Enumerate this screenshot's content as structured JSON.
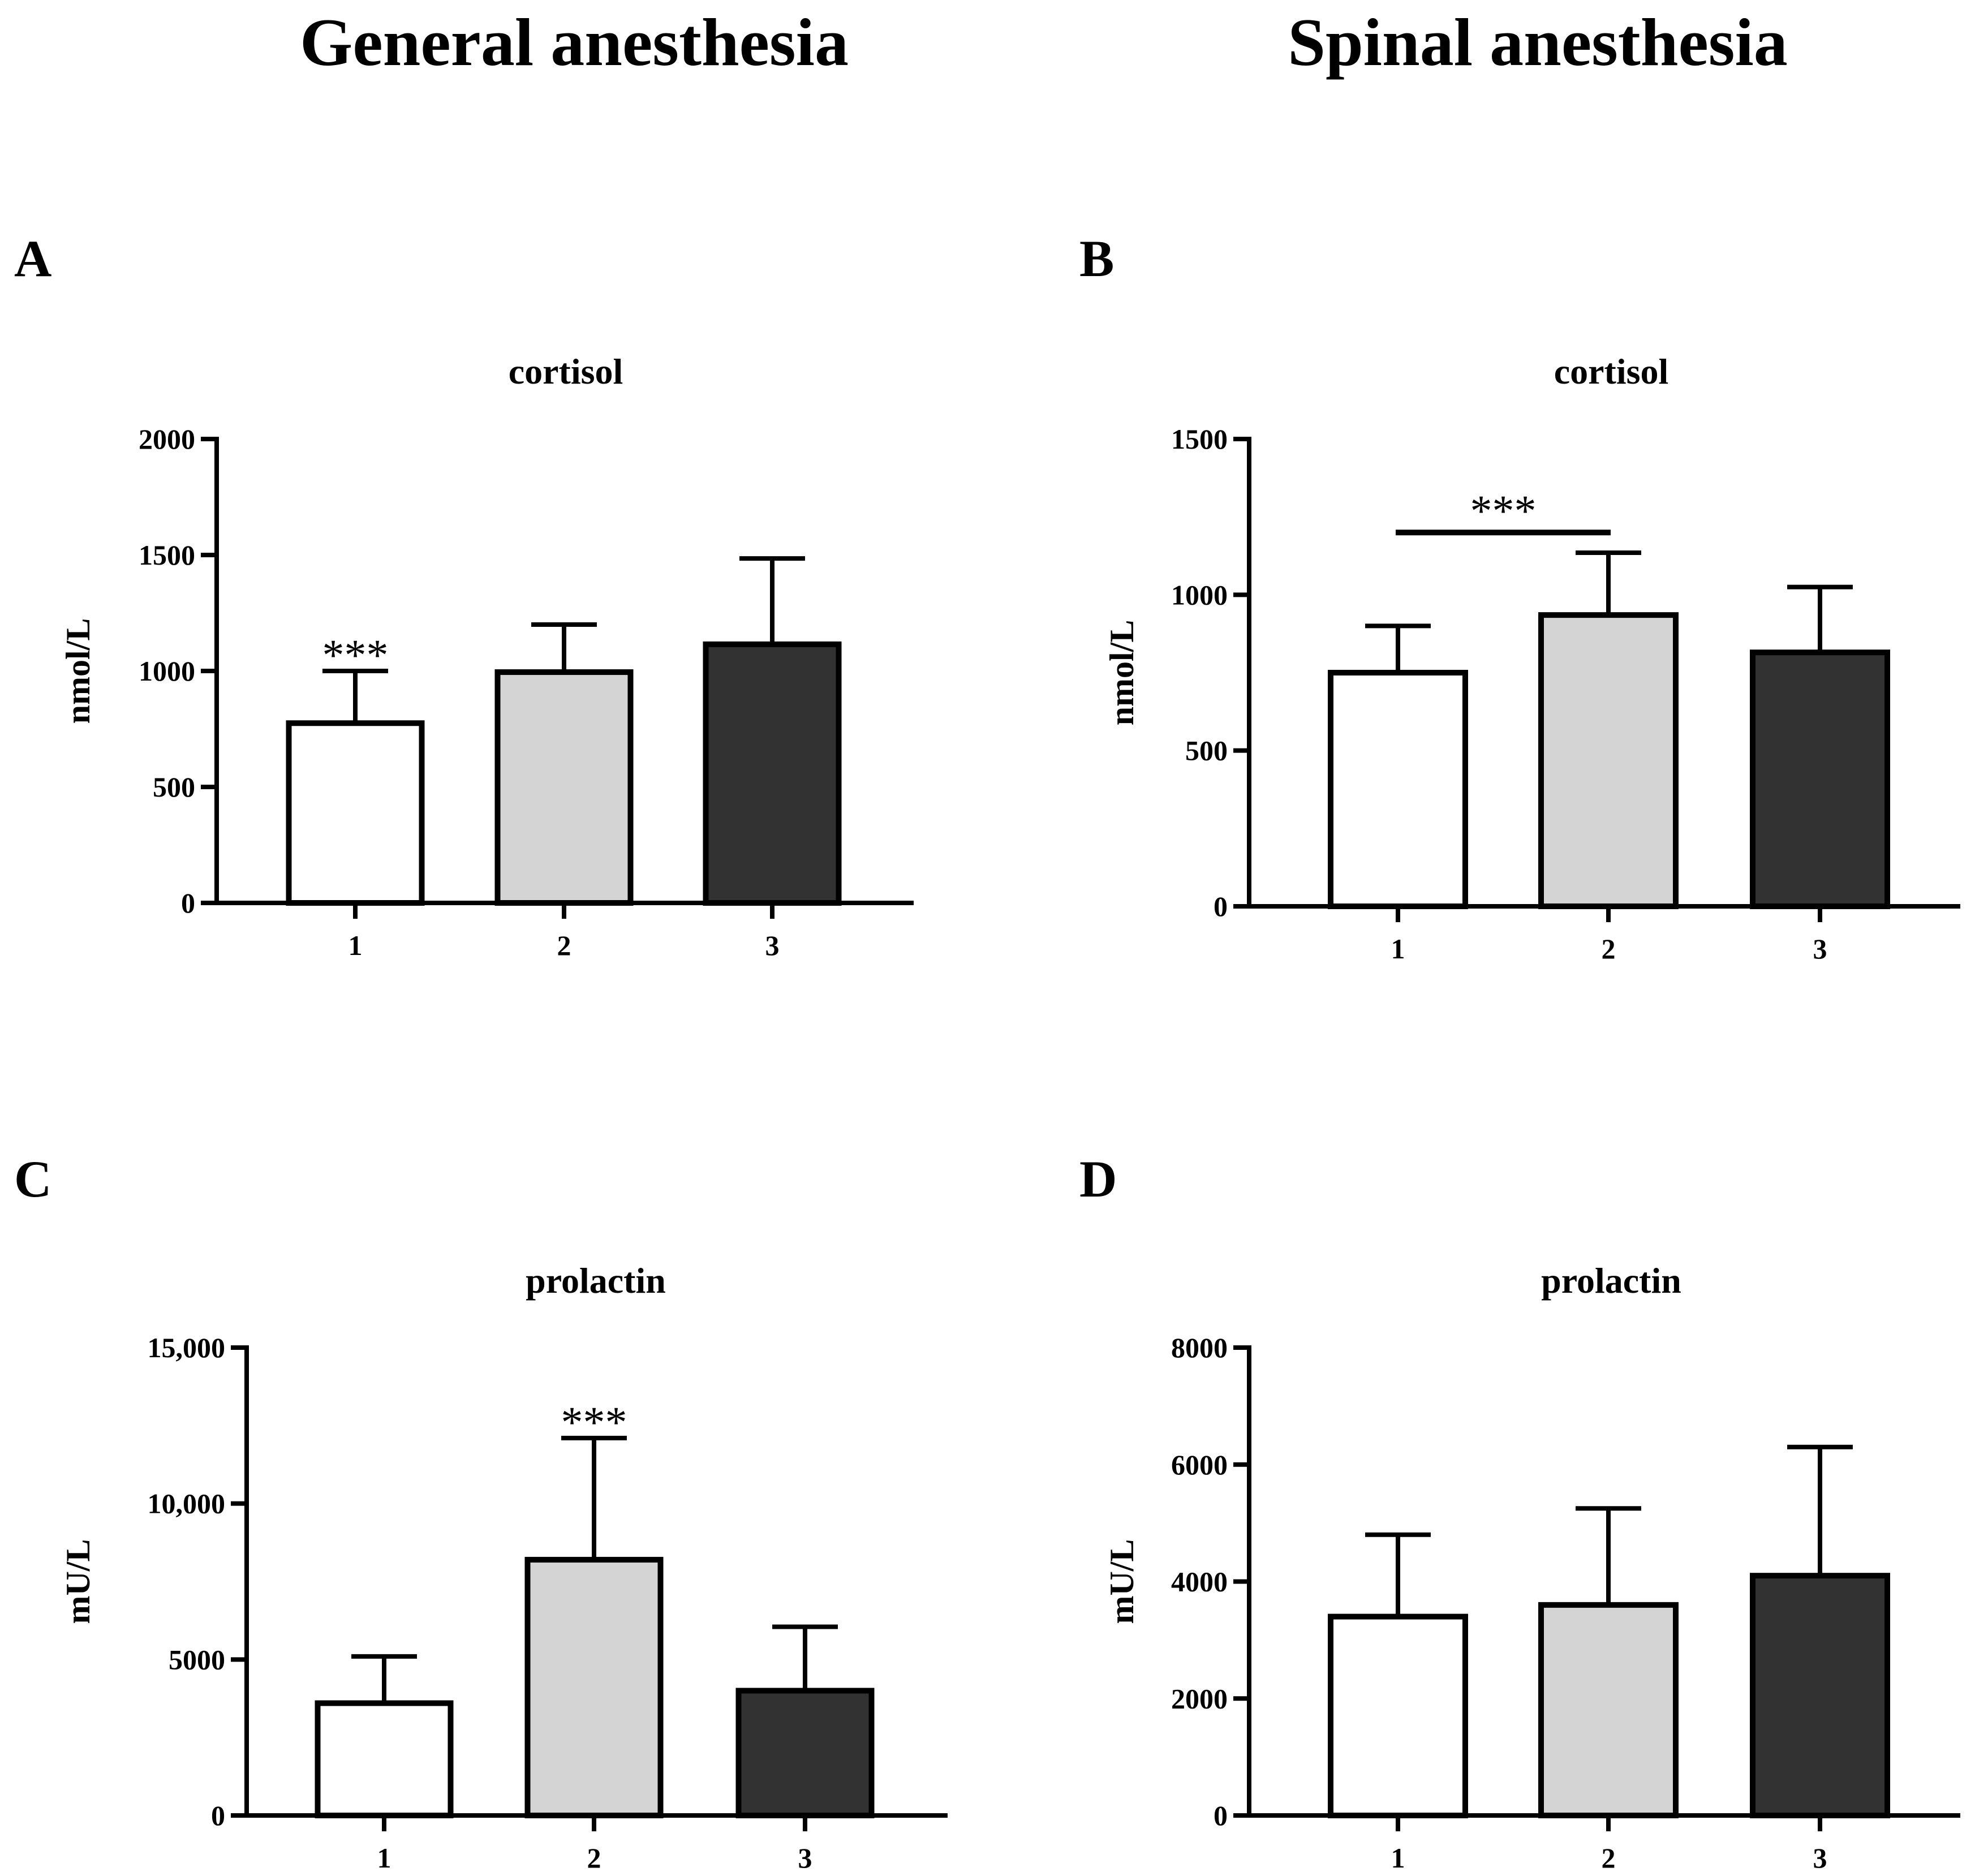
{
  "headings": {
    "general": "General anesthesia",
    "spinal": "Spinal anesthesia"
  },
  "chart_data": [
    {
      "panel": "A",
      "type": "bar",
      "title": "cortisol",
      "xlabel": "",
      "ylabel": "nmol/L",
      "categories": [
        "1",
        "2",
        "3"
      ],
      "values": [
        775,
        995,
        1115
      ],
      "error_upper": [
        1000,
        1200,
        1485
      ],
      "colors": [
        "#ffffff",
        "#d4d4d4",
        "#323232"
      ],
      "ylim": [
        0,
        2000
      ],
      "yticks": [
        0,
        500,
        1000,
        1500,
        2000
      ],
      "ytick_labels": [
        "0",
        "500",
        "1000",
        "1500",
        "2000"
      ],
      "annotations": [
        {
          "text": "***",
          "category": "1",
          "type": "above-bar"
        }
      ]
    },
    {
      "panel": "B",
      "type": "bar",
      "title": "cortisol",
      "xlabel": "",
      "ylabel": "nmol/L",
      "categories": [
        "1",
        "2",
        "3"
      ],
      "values": [
        750,
        935,
        815
      ],
      "error_upper": [
        900,
        1135,
        1025
      ],
      "colors": [
        "#ffffff",
        "#d4d4d4",
        "#323232"
      ],
      "ylim": [
        0,
        1500
      ],
      "yticks": [
        0,
        500,
        1000,
        1500
      ],
      "ytick_labels": [
        "0",
        "500",
        "1000",
        "1500"
      ],
      "annotations": [
        {
          "text": "***",
          "from": "1",
          "to": "2",
          "type": "bracket",
          "level": 1200
        }
      ]
    },
    {
      "panel": "C",
      "type": "bar",
      "title": "prolactin",
      "xlabel": "",
      "ylabel": "mU/L",
      "categories": [
        "1",
        "2",
        "3"
      ],
      "values": [
        3600,
        8200,
        4000
      ],
      "error_upper": [
        5100,
        12100,
        6050
      ],
      "colors": [
        "#ffffff",
        "#d4d4d4",
        "#323232"
      ],
      "ylim": [
        0,
        15000
      ],
      "yticks": [
        0,
        5000,
        10000,
        15000
      ],
      "ytick_labels": [
        "0",
        "5000",
        "10,000",
        "15,000"
      ],
      "annotations": [
        {
          "text": "***",
          "category": "2",
          "type": "above-bar"
        }
      ]
    },
    {
      "panel": "D",
      "type": "bar",
      "title": "prolactin",
      "xlabel": "",
      "ylabel": "mU/L",
      "categories": [
        "1",
        "2",
        "3"
      ],
      "values": [
        3400,
        3600,
        4100
      ],
      "error_upper": [
        4800,
        5250,
        6300
      ],
      "colors": [
        "#ffffff",
        "#d4d4d4",
        "#323232"
      ],
      "ylim": [
        0,
        8000
      ],
      "yticks": [
        0,
        2000,
        4000,
        6000,
        8000
      ],
      "ytick_labels": [
        "0",
        "2000",
        "4000",
        "6000",
        "8000"
      ],
      "annotations": []
    }
  ]
}
